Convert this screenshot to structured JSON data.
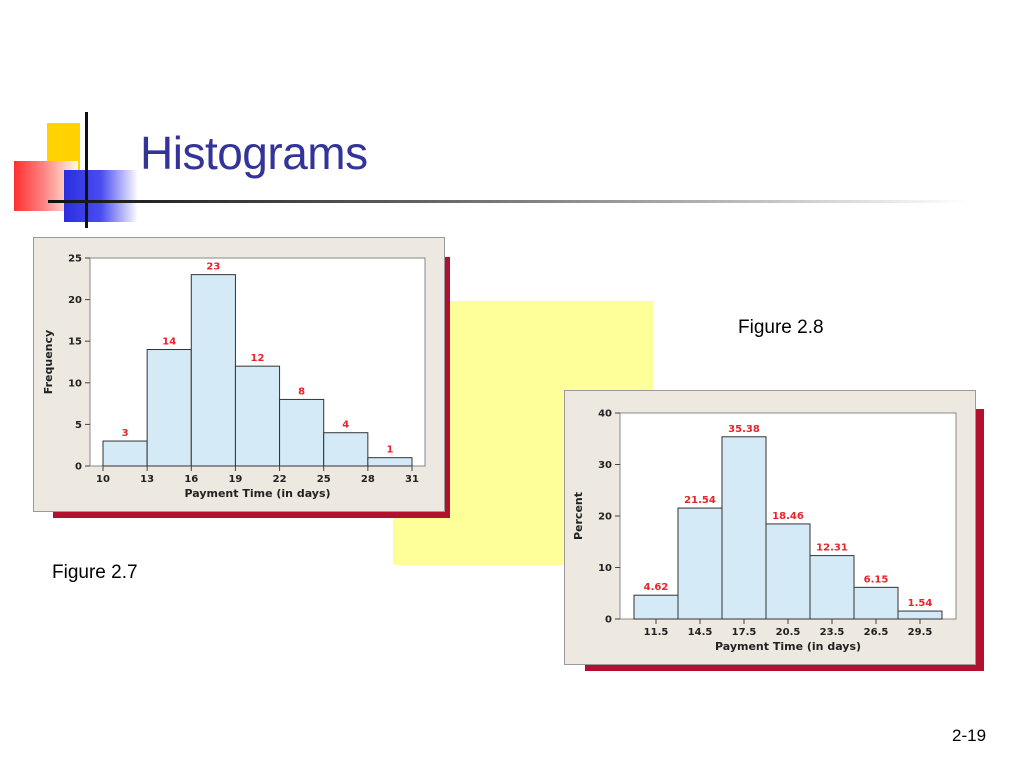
{
  "slide": {
    "title": "Histograms",
    "slide_number": "2-19",
    "figure_labels": [
      "Figure 2.7",
      "Figure 2.8"
    ]
  },
  "colors": {
    "title": "#33339a",
    "bar_fill": "#d4eaf6",
    "bar_label": "#e8232b",
    "panel_bg": "#ede9e1",
    "shadow": "#b3102f",
    "highlight_box": "#ffff99"
  },
  "chart_data": [
    {
      "type": "bar",
      "title": "",
      "xlabel": "Payment Time (in days)",
      "ylabel": "Frequency",
      "x_ticks": [
        "10",
        "13",
        "16",
        "19",
        "22",
        "25",
        "28",
        "31"
      ],
      "bin_edges": [
        10,
        13,
        16,
        19,
        22,
        25,
        28,
        31
      ],
      "values": [
        3,
        14,
        23,
        12,
        8,
        4,
        1
      ],
      "data_labels": [
        "3",
        "14",
        "23",
        "12",
        "8",
        "4",
        "1"
      ],
      "ylim": [
        0,
        25
      ],
      "y_ticks": [
        "0",
        "5",
        "10",
        "15",
        "20",
        "25"
      ],
      "grid": false
    },
    {
      "type": "bar",
      "title": "",
      "xlabel": "Payment Time (in days)",
      "ylabel": "Percent",
      "x_ticks": [
        "11.5",
        "14.5",
        "17.5",
        "20.5",
        "23.5",
        "26.5",
        "29.5"
      ],
      "values": [
        4.62,
        21.54,
        35.38,
        18.46,
        12.31,
        6.15,
        1.54
      ],
      "data_labels": [
        "4.62",
        "21.54",
        "35.38",
        "18.46",
        "12.31",
        "6.15",
        "1.54"
      ],
      "ylim": [
        0,
        40
      ],
      "y_ticks": [
        "0",
        "10",
        "20",
        "30",
        "40"
      ],
      "grid": false
    }
  ]
}
